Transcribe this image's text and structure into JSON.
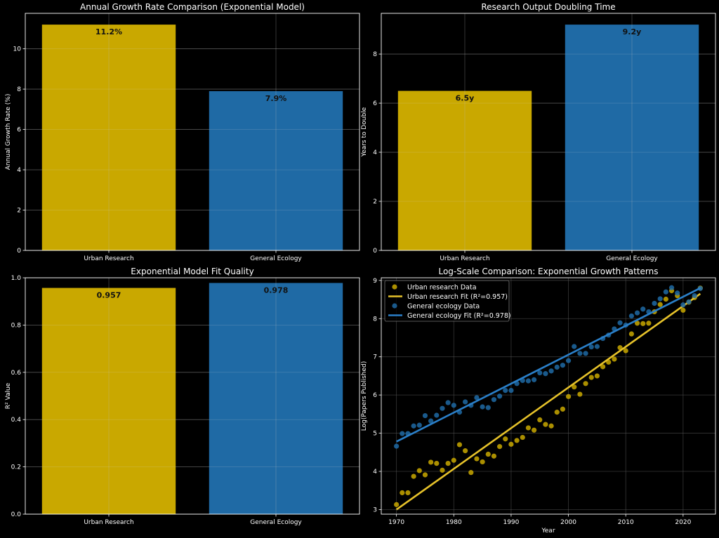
{
  "colors": {
    "urban": "#c9a800",
    "urban_line": "#e6c22a",
    "ecology": "#1f6aa5",
    "ecology_line": "#2a7fc8",
    "background": "#000000",
    "grid": "#5a5a5a",
    "text": "#ffffff"
  },
  "chart_data": [
    {
      "id": "growth",
      "type": "bar",
      "title": "Annual Growth Rate Comparison (Exponential Model)",
      "xlabel": "",
      "ylabel": "Annual Growth Rate (%)",
      "categories": [
        "Urban Research",
        "General Ecology"
      ],
      "values": [
        11.2,
        7.9
      ],
      "value_labels": [
        "11.2%",
        "7.9%"
      ],
      "ylim": [
        0,
        11.76
      ],
      "yticks": [
        0,
        2,
        4,
        6,
        8,
        10
      ],
      "grid": true
    },
    {
      "id": "doubling",
      "type": "bar",
      "title": "Research Output Doubling Time",
      "xlabel": "",
      "ylabel": "Years to Double",
      "categories": [
        "Urban Research",
        "General Ecology"
      ],
      "values": [
        6.5,
        9.2
      ],
      "value_labels": [
        "6.5y",
        "9.2y"
      ],
      "ylim": [
        0,
        9.66
      ],
      "yticks": [
        0,
        2,
        4,
        6,
        8
      ],
      "grid": true
    },
    {
      "id": "r2",
      "type": "bar",
      "title": "Exponential Model Fit Quality",
      "xlabel": "",
      "ylabel": "R² Value",
      "categories": [
        "Urban Research",
        "General Ecology"
      ],
      "values": [
        0.957,
        0.978
      ],
      "value_labels": [
        "0.957",
        "0.978"
      ],
      "ylim": [
        0,
        1.0
      ],
      "yticks": [
        0.0,
        0.2,
        0.4,
        0.6,
        0.8,
        1.0
      ],
      "ytick_labels": [
        "0.0",
        "0.2",
        "0.4",
        "0.6",
        "0.8",
        "1.0"
      ],
      "grid": true
    },
    {
      "id": "log",
      "type": "scatter",
      "title": "Log-Scale Comparison: Exponential Growth Patterns",
      "xlabel": "Year",
      "ylabel": "Log(Papers Published)",
      "xlim": [
        1967.35,
        2025.65
      ],
      "ylim": [
        2.88,
        9.07
      ],
      "xticks": [
        1970,
        1980,
        1990,
        2000,
        2010,
        2020
      ],
      "yticks": [
        3,
        4,
        5,
        6,
        7,
        8,
        9
      ],
      "grid": true,
      "legend": "top-left",
      "series": [
        {
          "name": "Urban research Data",
          "kind": "points",
          "color_key": "urban",
          "x": [
            1970,
            1971,
            1972,
            1973,
            1974,
            1975,
            1976,
            1977,
            1978,
            1979,
            1980,
            1981,
            1982,
            1983,
            1984,
            1985,
            1986,
            1987,
            1988,
            1989,
            1990,
            1991,
            1992,
            1993,
            1994,
            1995,
            1996,
            1997,
            1998,
            1999,
            2000,
            2001,
            2002,
            2003,
            2004,
            2005,
            2006,
            2007,
            2008,
            2009,
            2010,
            2011,
            2012,
            2013,
            2014,
            2015,
            2016,
            2017,
            2018,
            2019,
            2020,
            2021,
            2022,
            2023
          ],
          "y": [
            3.13,
            3.44,
            3.44,
            3.87,
            4.02,
            3.91,
            4.24,
            4.21,
            4.03,
            4.21,
            4.29,
            4.7,
            4.54,
            3.97,
            4.33,
            4.25,
            4.45,
            4.4,
            4.65,
            4.85,
            4.71,
            4.81,
            4.89,
            5.14,
            5.08,
            5.35,
            5.23,
            5.19,
            5.55,
            5.63,
            5.96,
            6.21,
            6.02,
            6.3,
            6.46,
            6.5,
            6.74,
            6.86,
            6.94,
            7.24,
            7.16,
            7.6,
            7.88,
            7.87,
            7.88,
            8.18,
            8.37,
            8.51,
            8.73,
            8.6,
            8.22,
            8.43,
            8.55,
            8.8
          ]
        },
        {
          "name": "Urban research Fit (R²=0.957)",
          "kind": "line",
          "color_key": "urban_line",
          "x": [
            1970,
            2023
          ],
          "y": [
            3.0,
            8.65
          ]
        },
        {
          "name": "General ecology Data",
          "kind": "points",
          "color_key": "ecology",
          "x": [
            1970,
            1971,
            1972,
            1973,
            1974,
            1975,
            1976,
            1977,
            1978,
            1979,
            1980,
            1981,
            1982,
            1983,
            1984,
            1985,
            1986,
            1987,
            1988,
            1989,
            1990,
            1991,
            1992,
            1993,
            1994,
            1995,
            1996,
            1997,
            1998,
            1999,
            2000,
            2001,
            2002,
            2003,
            2004,
            2005,
            2006,
            2007,
            2008,
            2009,
            2010,
            2011,
            2012,
            2013,
            2014,
            2015,
            2016,
            2017,
            2018,
            2019,
            2020,
            2021,
            2022,
            2023
          ],
          "y": [
            4.66,
            4.99,
            4.99,
            5.19,
            5.21,
            5.46,
            5.32,
            5.47,
            5.65,
            5.8,
            5.73,
            5.55,
            5.82,
            5.73,
            5.93,
            5.69,
            5.67,
            5.88,
            5.97,
            6.12,
            6.12,
            6.3,
            6.38,
            6.37,
            6.4,
            6.58,
            6.56,
            6.63,
            6.73,
            6.78,
            6.9,
            7.27,
            7.09,
            7.09,
            7.26,
            7.27,
            7.48,
            7.57,
            7.73,
            7.89,
            7.83,
            8.07,
            8.15,
            8.25,
            8.18,
            8.4,
            8.52,
            8.7,
            8.81,
            8.67,
            8.36,
            8.44,
            8.6,
            8.79
          ]
        },
        {
          "name": "General ecology Fit (R²=0.978)",
          "kind": "line",
          "color_key": "ecology_line",
          "x": [
            1970,
            2023
          ],
          "y": [
            4.78,
            8.8
          ]
        }
      ]
    }
  ]
}
